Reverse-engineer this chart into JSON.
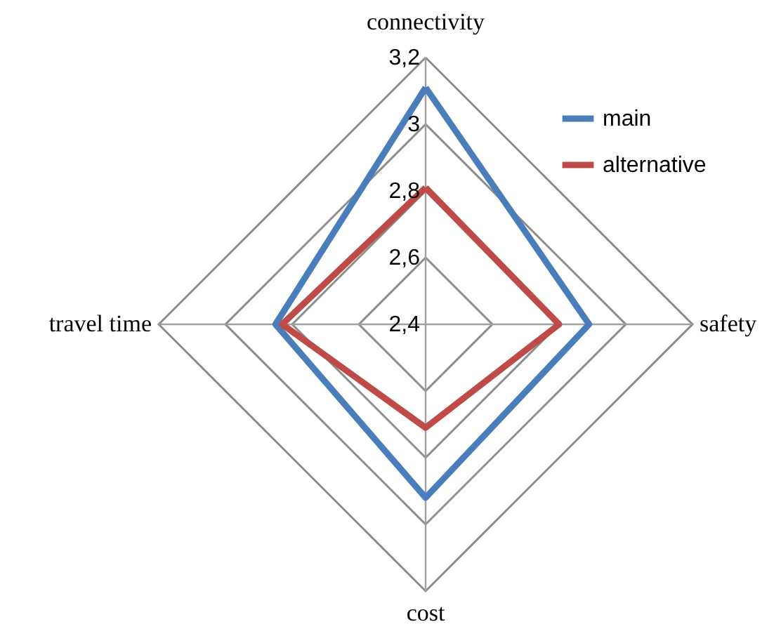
{
  "chart_data": {
    "type": "radar",
    "categories": [
      "connectivity",
      "safety",
      "cost",
      "travel time"
    ],
    "series": [
      {
        "name": "main",
        "color": "#4a7ebb",
        "values": [
          3.11,
          2.89,
          2.92,
          2.85
        ]
      },
      {
        "name": "alternative",
        "color": "#be4b48",
        "values": [
          2.81,
          2.8,
          2.71,
          2.83
        ]
      }
    ],
    "ylim": [
      2.4,
      3.2
    ],
    "yticks": [
      {
        "value": 2.4,
        "label": "2,4"
      },
      {
        "value": 2.6,
        "label": "2,6"
      },
      {
        "value": 2.8,
        "label": "2,8"
      },
      {
        "value": 3,
        "label": "3"
      },
      {
        "value": 3.2,
        "label": "3,2"
      }
    ],
    "grid": true,
    "legend": "top right",
    "line_style": "solid"
  }
}
